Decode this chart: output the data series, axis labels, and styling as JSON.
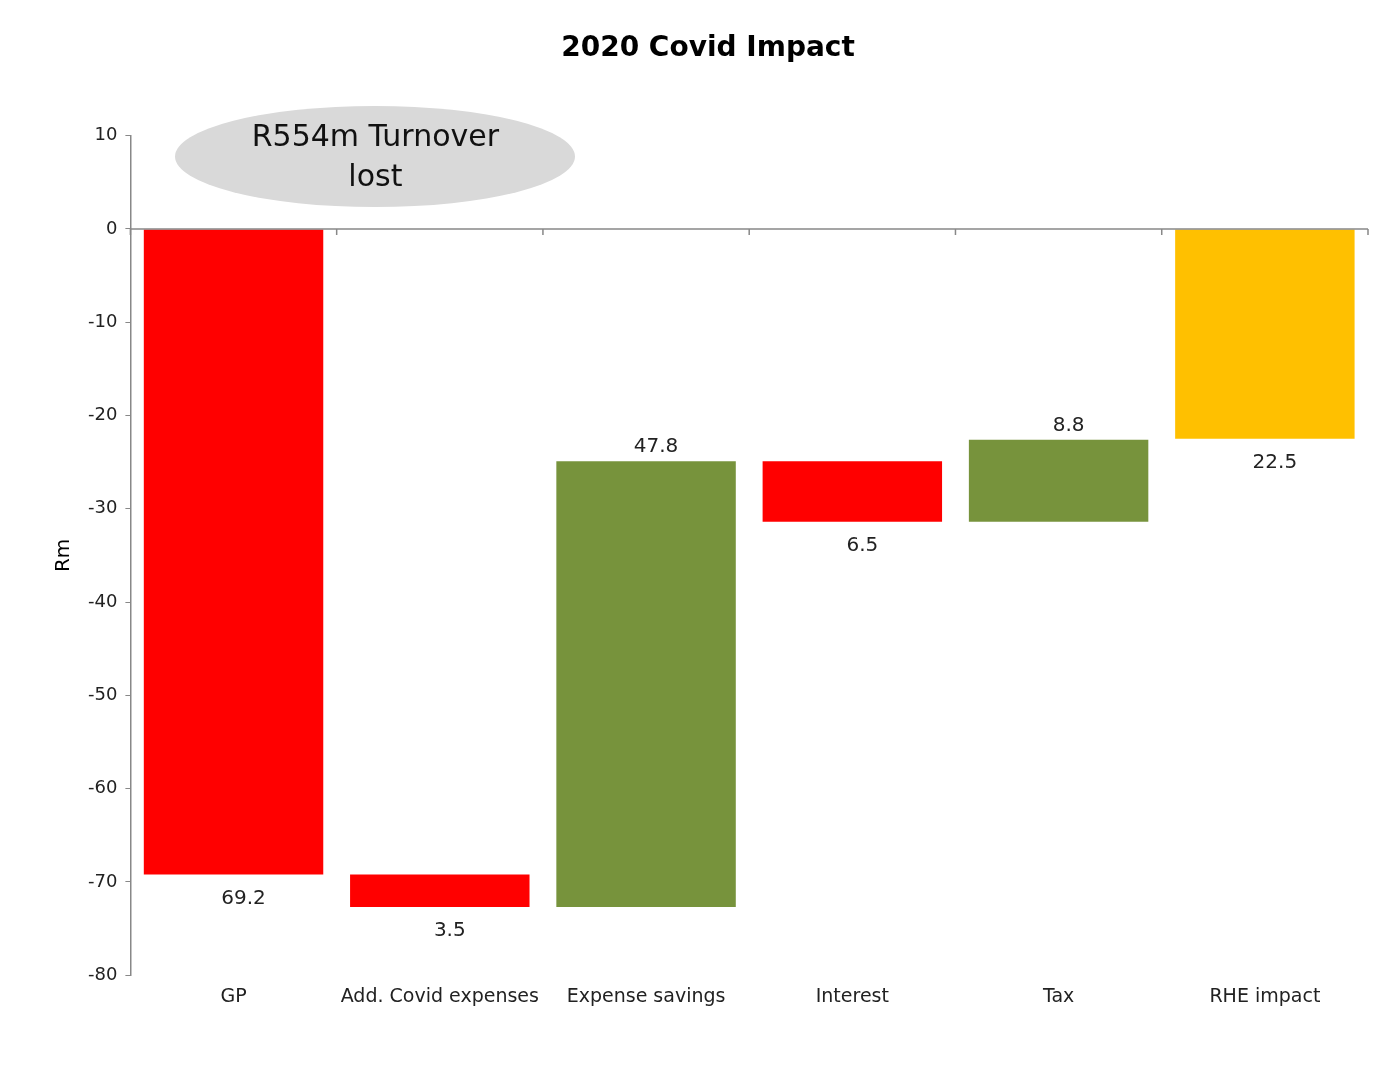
{
  "chart_data": {
    "type": "bar",
    "title": "2020 Covid Impact",
    "ylabel": "Rm",
    "categories": [
      "GP",
      "Add. Covid expenses",
      "Expense savings",
      "Interest",
      "Tax",
      "RHE impact"
    ],
    "values": [
      -69.2,
      -3.5,
      47.8,
      -6.5,
      8.8,
      -22.5
    ],
    "base": [
      0,
      -69.2,
      -72.7,
      -24.9,
      -31.4,
      0
    ],
    "colors": [
      "#ff0000",
      "#ff0000",
      "#77933c",
      "#ff0000",
      "#77933c",
      "#ffc000"
    ],
    "value_labels": [
      "69.2",
      "3.5",
      "47.8",
      "6.5",
      "8.8",
      "22.5"
    ],
    "ylim": [
      -80,
      10
    ],
    "yticks": [
      10,
      0,
      -10,
      -20,
      -30,
      -40,
      -50,
      -60,
      -70,
      -80
    ],
    "legend": false,
    "annotations": [
      "R554m Turnover lost"
    ]
  }
}
